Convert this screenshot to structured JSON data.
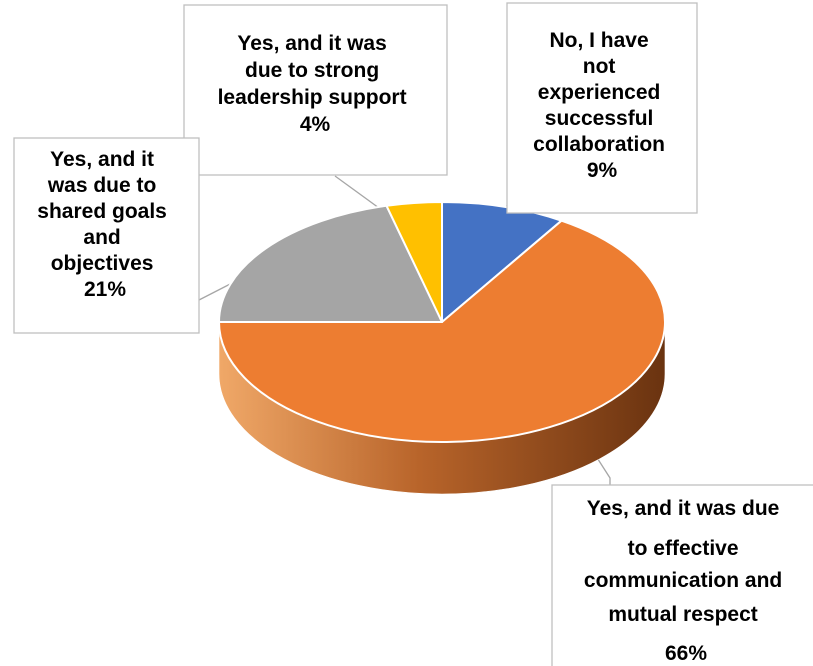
{
  "chart_data": {
    "type": "pie",
    "title": "",
    "categories": [
      "No, I have not experienced successful collaboration",
      "Yes, and it was due to effective communication and mutual respect",
      "Yes, and it was due to shared goals and objectives",
      "Yes, and it was due to strong leadership support"
    ],
    "values": [
      9,
      66,
      21,
      4
    ],
    "value_labels": [
      "9%",
      "66%",
      "21%",
      "4%"
    ],
    "colors": [
      "#4472c4",
      "#ed7d31",
      "#a5a5a5",
      "#ffc000"
    ],
    "side_colors": [
      "#2f5597",
      "#a0521c",
      "#7b7b7b",
      "#bf9000"
    ],
    "style": "3d",
    "legend": "none"
  },
  "callouts": {
    "no_experience": {
      "lines": [
        "No, I have",
        "not",
        "experienced",
        "successful",
        "collaboration"
      ],
      "pct": "9%"
    },
    "communication": {
      "lines": [
        "Yes, and it was due",
        "to effective",
        "communication and",
        "mutual respect"
      ],
      "pct": "66%"
    },
    "shared_goals": {
      "lines": [
        "Yes, and it",
        "was due to",
        "shared goals",
        "and",
        "objectives"
      ],
      "pct": "21%"
    },
    "leadership": {
      "lines": [
        "Yes, and it was",
        "due to strong",
        "leadership support"
      ],
      "pct": "4%"
    }
  }
}
